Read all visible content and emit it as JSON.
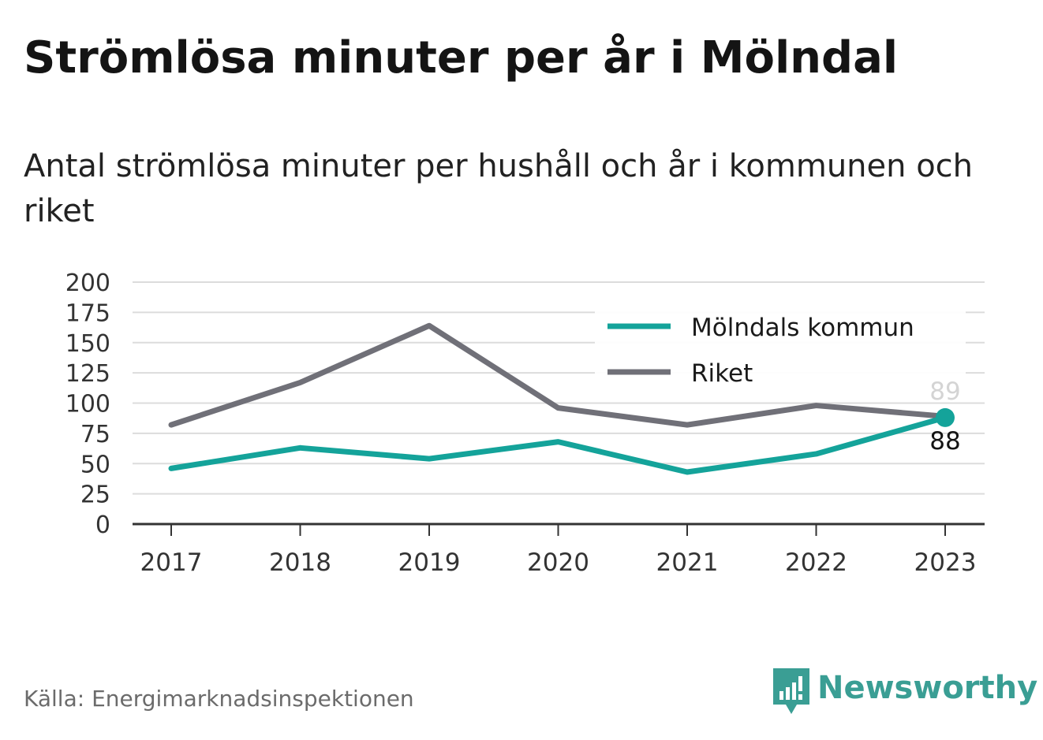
{
  "title": "Strömlösa minuter per år i Mölndal",
  "subtitle": "Antal strömlösa minuter per hushåll och år i kommunen och riket",
  "source": "Källa: Energimarknadsinspektionen",
  "brand": {
    "name": "Newsworthy",
    "icon": "newsworthy-logo-icon",
    "color": "#3a9e94"
  },
  "chart_data": {
    "type": "line",
    "x": [
      "2017",
      "2018",
      "2019",
      "2020",
      "2021",
      "2022",
      "2023"
    ],
    "ylim": [
      0,
      200
    ],
    "yticks": [
      0,
      25,
      50,
      75,
      100,
      125,
      150,
      175,
      200
    ],
    "grid": true,
    "legend_position": "top-right",
    "series": [
      {
        "name": "Mölndals kommun",
        "color": "#14a39a",
        "values": [
          46,
          63,
          54,
          68,
          43,
          58,
          88
        ],
        "end_label": "88"
      },
      {
        "name": "Riket",
        "color": "#707078",
        "values": [
          82,
          117,
          164,
          96,
          82,
          98,
          89
        ],
        "end_label": "89"
      }
    ]
  }
}
